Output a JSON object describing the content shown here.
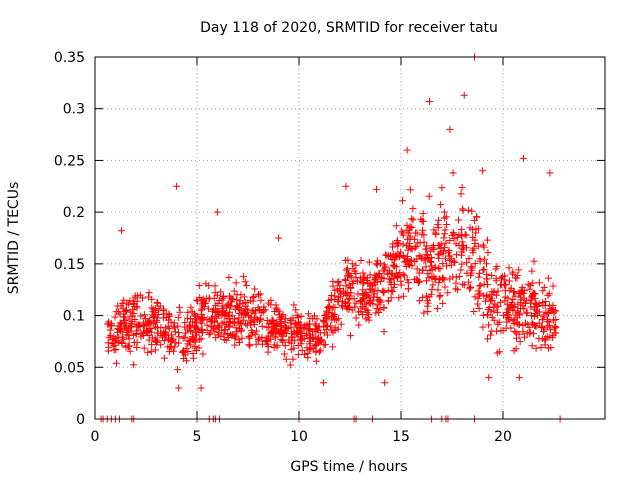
{
  "chart_data": {
    "type": "scatter",
    "title": "Day 118 of 2020, SRMTID for receiver tatu",
    "xlabel": "GPS time / hours",
    "ylabel": "SRMTID / TECUs",
    "xlim": [
      0,
      25
    ],
    "ylim": [
      0,
      0.35
    ],
    "xticks": [
      0,
      5,
      10,
      15,
      20
    ],
    "xtick_labels": [
      "0",
      "5",
      "10",
      "15",
      "20"
    ],
    "yticks": [
      0,
      0.05,
      0.1,
      0.15,
      0.2,
      0.25,
      0.3,
      0.35
    ],
    "ytick_labels": [
      "0",
      "0.05",
      "0.1",
      "0.15",
      "0.2",
      "0.25",
      "0.3",
      "0.35"
    ],
    "grid": true,
    "marker": "+",
    "series": [
      {
        "name": "SRMTID",
        "color": "#ff0000",
        "trend": [
          {
            "x": 0.6,
            "y": 0.08,
            "spread": 0.02
          },
          {
            "x": 1.5,
            "y": 0.09,
            "spread": 0.03
          },
          {
            "x": 3.0,
            "y": 0.09,
            "spread": 0.03
          },
          {
            "x": 4.5,
            "y": 0.08,
            "spread": 0.03
          },
          {
            "x": 5.4,
            "y": 0.1,
            "spread": 0.03
          },
          {
            "x": 7.0,
            "y": 0.1,
            "spread": 0.03
          },
          {
            "x": 9.0,
            "y": 0.09,
            "spread": 0.03
          },
          {
            "x": 10.2,
            "y": 0.085,
            "spread": 0.025
          },
          {
            "x": 11.0,
            "y": 0.08,
            "spread": 0.025
          },
          {
            "x": 12.0,
            "y": 0.12,
            "spread": 0.035
          },
          {
            "x": 13.5,
            "y": 0.12,
            "spread": 0.035
          },
          {
            "x": 14.5,
            "y": 0.14,
            "spread": 0.04
          },
          {
            "x": 15.5,
            "y": 0.17,
            "spread": 0.05
          },
          {
            "x": 16.5,
            "y": 0.15,
            "spread": 0.05
          },
          {
            "x": 17.5,
            "y": 0.17,
            "spread": 0.06
          },
          {
            "x": 18.5,
            "y": 0.16,
            "spread": 0.06
          },
          {
            "x": 19.5,
            "y": 0.11,
            "spread": 0.04
          },
          {
            "x": 21.0,
            "y": 0.11,
            "spread": 0.04
          },
          {
            "x": 22.6,
            "y": 0.09,
            "spread": 0.03
          }
        ],
        "points": [
          [
            4.0,
            0.225
          ],
          [
            16.4,
            0.307
          ],
          [
            18.1,
            0.313
          ],
          [
            18.6,
            0.35
          ],
          [
            17.4,
            0.28
          ],
          [
            21.0,
            0.252
          ],
          [
            1.3,
            0.182
          ],
          [
            6.0,
            0.2
          ],
          [
            13.8,
            0.222
          ],
          [
            12.3,
            0.225
          ],
          [
            22.3,
            0.238
          ],
          [
            9.0,
            0.175
          ],
          [
            15.3,
            0.26
          ],
          [
            19.0,
            0.24
          ],
          [
            14.2,
            0.035
          ],
          [
            4.1,
            0.03
          ],
          [
            5.2,
            0.03
          ],
          [
            11.2,
            0.035
          ],
          [
            19.3,
            0.04
          ],
          [
            20.8,
            0.04
          ]
        ],
        "zero_points": [
          0.3,
          0.4,
          0.6,
          0.8,
          1.0,
          1.2,
          1.8,
          1.9,
          5.0,
          5.6,
          5.8,
          5.9,
          6.1,
          10.0,
          12.7,
          12.8,
          13.6,
          16.5,
          17.0,
          17.2,
          17.3,
          18.6,
          22.8
        ]
      }
    ]
  }
}
